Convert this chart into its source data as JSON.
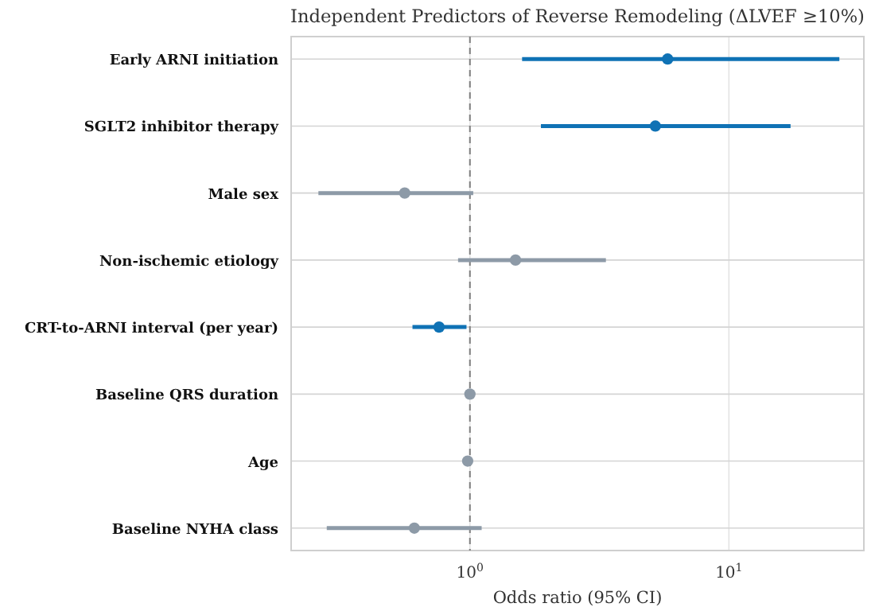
{
  "chart_data": {
    "type": "scatter",
    "orientation": "horizontal",
    "title": "Independent Predictors of Reverse Remodeling (ΔLVEF ≥10%)",
    "xlabel": "Odds ratio (95% CI)",
    "categories": [
      "Early ARNI initiation",
      "SGLT2 inhibitor therapy",
      "Male sex",
      "Non-ischemic etiology",
      "CRT-to-ARNI interval (per year)",
      "Baseline QRS duration",
      "Age",
      "Baseline NYHA class"
    ],
    "values": [
      5.8,
      5.2,
      0.56,
      1.5,
      0.76,
      1.0,
      0.98,
      0.61
    ],
    "errors": [
      [
        1.59,
        26.7
      ],
      [
        1.88,
        17.3
      ],
      [
        0.26,
        1.03
      ],
      [
        0.9,
        3.35
      ],
      [
        0.6,
        0.97
      ],
      [
        0.99,
        1.01
      ],
      [
        0.97,
        0.99
      ],
      [
        0.28,
        1.11
      ]
    ],
    "colors": [
      "#0f72b5",
      "#0f72b5",
      "#8d9aa7",
      "#8d9aa7",
      "#0f72b5",
      "#8d9aa7",
      "#8d9aa7",
      "#8d9aa7"
    ],
    "xlim": [
      0.204,
      33.2
    ],
    "xticks": [
      {
        "value": 1,
        "label": "10$^{0}$"
      },
      {
        "value": 10,
        "label": "10$^{1}$"
      }
    ],
    "log": "x",
    "grid": true,
    "marker": "circle",
    "ref_lines": [
      {
        "axis": "x",
        "value": 1,
        "color": "#7f7f7f",
        "line_style": "dashed"
      }
    ]
  }
}
